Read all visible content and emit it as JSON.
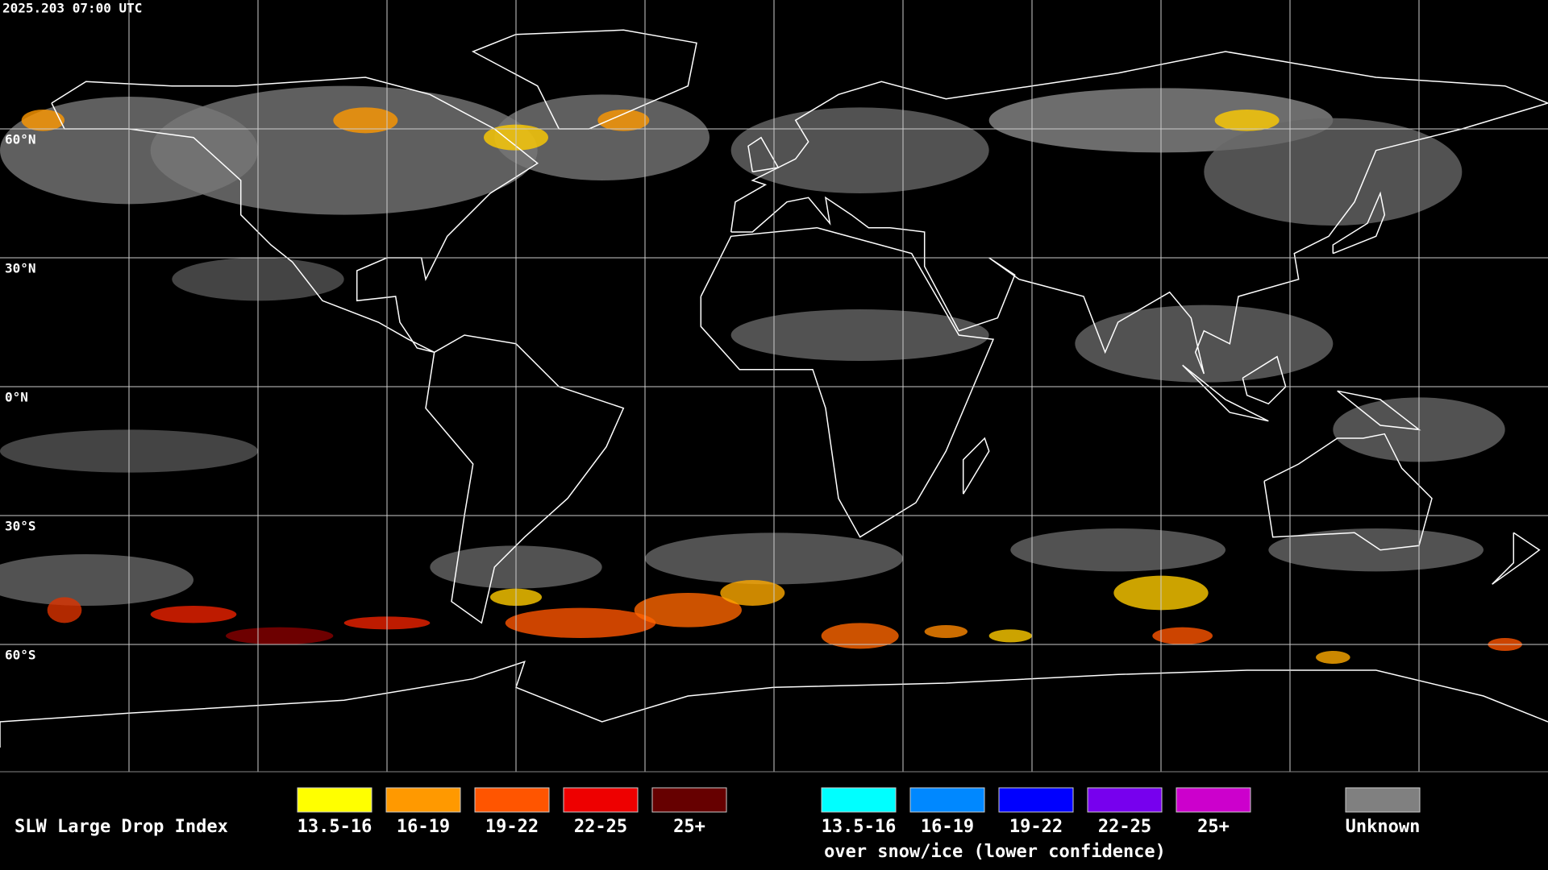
{
  "timestamp": "2025.203 07:00 UTC",
  "latitudes": [
    "60°N",
    "30°N",
    "0°N",
    "30°S",
    "60°S"
  ],
  "legend": {
    "title": "SLW Large Drop Index",
    "items": [
      {
        "label": "13.5-16",
        "color": "#ffff00"
      },
      {
        "label": "16-19",
        "color": "#ff9900"
      },
      {
        "label": "19-22",
        "color": "#ff5500"
      },
      {
        "label": "22-25",
        "color": "#ee0000"
      },
      {
        "label": "25+",
        "color": "#660000"
      }
    ],
    "snow_items": [
      {
        "label": "13.5-16",
        "color": "#00ffff"
      },
      {
        "label": "16-19",
        "color": "#0088ff"
      },
      {
        "label": "19-22",
        "color": "#0000ff"
      },
      {
        "label": "22-25",
        "color": "#7700ee"
      },
      {
        "label": "25+",
        "color": "#cc00cc"
      }
    ],
    "snow_note": "over snow/ice (lower confidence)",
    "unknown": {
      "label": "Unknown",
      "color": "#808080"
    }
  }
}
